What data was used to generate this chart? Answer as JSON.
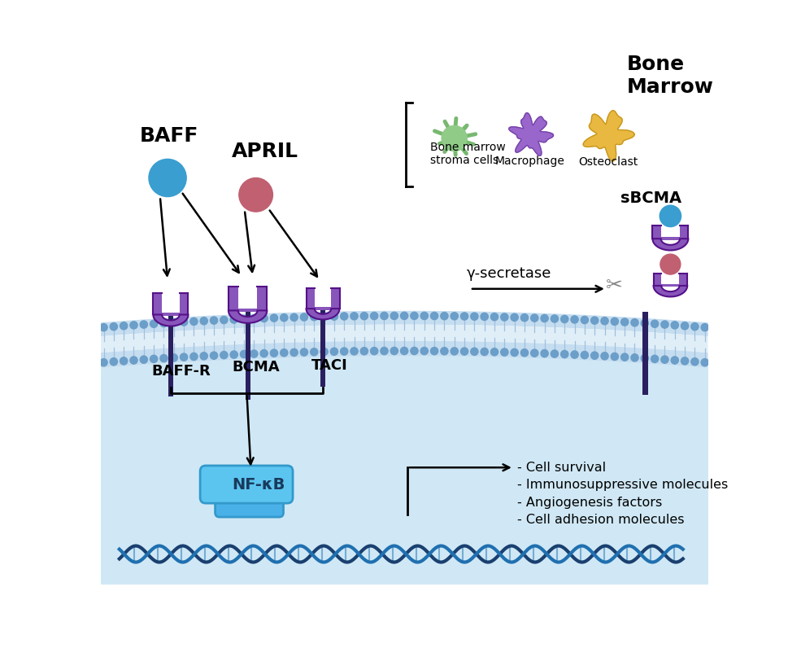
{
  "bg_color": "#ffffff",
  "cell_interior_color": "#d0e8f5",
  "membrane_band_color": "#b8d4ee",
  "membrane_dots_color": "#6b9ec8",
  "receptor_color": "#8855bb",
  "receptor_stem_color": "#2a2060",
  "baff_color": "#3a9ed0",
  "april_color": "#c06070",
  "nfkb_color": "#4ab0e8",
  "nfkb_color2": "#5bc0f0",
  "dna_color1": "#1a4070",
  "dna_color2": "#2070b0",
  "sbcma_label": "sBCMA",
  "gamma_secretase_label": "γ-secretase",
  "baff_label": "BAFF",
  "april_label": "APRIL",
  "baffr_label": "BAFF-R",
  "bcma_label": "BCMA",
  "taci_label": "TACI",
  "nfkb_label": "NF-κB",
  "bone_marrow_label": "Bone\nMarrow",
  "bm_stroma_label": "Bone marrow\nstroma cells",
  "macrophage_label": "Macrophage",
  "osteoclast_label": "Osteoclast",
  "outcomes": [
    "- Cell survival",
    "- Immunosuppressive molecules",
    "- Angiogenesis factors",
    "- Cell adhesion molecules"
  ]
}
